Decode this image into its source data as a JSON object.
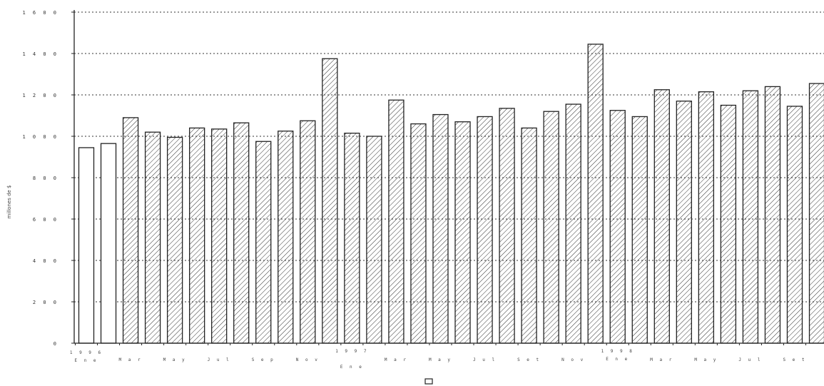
{
  "chart_data": {
    "type": "bar",
    "ylabel": "millones de $",
    "ylim": [
      0,
      1600
    ],
    "yticks": [
      0,
      200,
      400,
      600,
      800,
      1000,
      1200,
      1400,
      1600
    ],
    "ytick_labels": [
      "0",
      "2 0 0",
      "4 0 0",
      "6 0 0",
      "8 0 0",
      "1 0 0 0",
      "1 2 0 0",
      "1 4 0 0",
      "1 6 0 0"
    ],
    "grid": "horizontal dotted",
    "values": [
      945,
      965,
      1090,
      1020,
      995,
      1040,
      1035,
      1065,
      975,
      1025,
      1075,
      1375,
      1015,
      1000,
      1175,
      1060,
      1105,
      1070,
      1095,
      1135,
      1040,
      1120,
      1155,
      1445,
      1125,
      1095,
      1225,
      1170,
      1215,
      1150,
      1220,
      1240,
      1145,
      1255
    ],
    "x_labels": [
      {
        "index": 0,
        "year": "1 9 9 6",
        "month": "E n e"
      },
      {
        "index": 2,
        "month": "M a r"
      },
      {
        "index": 4,
        "month": "M a y"
      },
      {
        "index": 6,
        "month": "J u l"
      },
      {
        "index": 8,
        "month": "S e p"
      },
      {
        "index": 10,
        "month": "N o v"
      },
      {
        "index": 12,
        "year": "1 9 9 7",
        "month": "E n e"
      },
      {
        "index": 14,
        "month": "M a r"
      },
      {
        "index": 16,
        "month": "M a y"
      },
      {
        "index": 18,
        "month": "J u l"
      },
      {
        "index": 20,
        "month": "S e t"
      },
      {
        "index": 22,
        "month": "N o v"
      },
      {
        "index": 24,
        "year": "1 9 9 8",
        "month": "E n e"
      },
      {
        "index": 26,
        "month": "M a r"
      },
      {
        "index": 28,
        "month": "M a y"
      },
      {
        "index": 30,
        "month": "J u l"
      },
      {
        "index": 32,
        "month": "S e t"
      }
    ],
    "legend": {
      "placement": "bottom-center",
      "marker": "empty-box"
    },
    "colors": {
      "bar_stroke": "#222222",
      "bar_fill": "#ffffff",
      "hatch": "#333333",
      "grid": "#333333"
    }
  }
}
